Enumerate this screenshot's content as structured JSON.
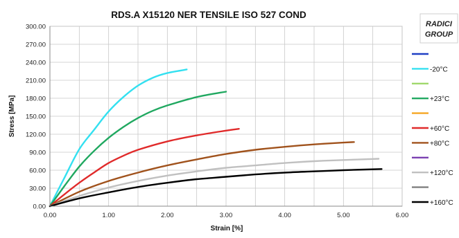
{
  "chart_data": {
    "type": "line",
    "title": "RDS.A X15120 NER TENSILE ISO 527 COND",
    "xlabel": "Strain [%]",
    "ylabel": "Stress [MPa]",
    "xlim": [
      0,
      6
    ],
    "ylim": [
      0,
      300
    ],
    "x_ticks": [
      "0.00",
      "1.00",
      "2.00",
      "3.00",
      "4.00",
      "5.00",
      "6.00"
    ],
    "y_ticks": [
      "0.00",
      "30.00",
      "60.00",
      "90.00",
      "120.00",
      "150.00",
      "180.00",
      "210.00",
      "240.00",
      "270.00",
      "300.00"
    ],
    "grid": true,
    "legend_position": "right",
    "logo_text": "RADICI GROUP",
    "series": [
      {
        "name": "",
        "color": "#1f3fc4",
        "points": []
      },
      {
        "name": "-20°C",
        "color": "#33e0f0",
        "points": [
          [
            0,
            0
          ],
          [
            0.25,
            48
          ],
          [
            0.5,
            95
          ],
          [
            0.75,
            127
          ],
          [
            1.0,
            158
          ],
          [
            1.25,
            182
          ],
          [
            1.5,
            201
          ],
          [
            1.75,
            214
          ],
          [
            2.0,
            222
          ],
          [
            2.33,
            228
          ]
        ]
      },
      {
        "name": "",
        "color": "#9fd86a",
        "points": []
      },
      {
        "name": "+23°C",
        "color": "#20a860",
        "points": [
          [
            0,
            0
          ],
          [
            0.25,
            34
          ],
          [
            0.5,
            66
          ],
          [
            0.75,
            92
          ],
          [
            1.0,
            114
          ],
          [
            1.25,
            132
          ],
          [
            1.5,
            147
          ],
          [
            1.75,
            159
          ],
          [
            2.0,
            168
          ],
          [
            2.5,
            182
          ],
          [
            3.0,
            191
          ]
        ]
      },
      {
        "name": "",
        "color": "#f5a623",
        "points": []
      },
      {
        "name": "+60°C",
        "color": "#e02a2a",
        "points": [
          [
            0,
            0
          ],
          [
            0.25,
            20
          ],
          [
            0.5,
            39
          ],
          [
            0.75,
            56
          ],
          [
            1.0,
            72
          ],
          [
            1.25,
            84
          ],
          [
            1.5,
            94
          ],
          [
            2.0,
            108
          ],
          [
            2.5,
            118
          ],
          [
            3.0,
            126
          ],
          [
            3.22,
            129
          ]
        ]
      },
      {
        "name": "+80°C",
        "color": "#a0521c",
        "points": [
          [
            0,
            0
          ],
          [
            0.5,
            24
          ],
          [
            1.0,
            42
          ],
          [
            1.5,
            56
          ],
          [
            2.0,
            68
          ],
          [
            2.5,
            78
          ],
          [
            3.0,
            87
          ],
          [
            3.5,
            94
          ],
          [
            4.0,
            99
          ],
          [
            4.5,
            103
          ],
          [
            5.0,
            106
          ],
          [
            5.18,
            107
          ]
        ]
      },
      {
        "name": "",
        "color": "#7a3fb0",
        "points": []
      },
      {
        "name": "+120°C",
        "color": "#c0c0c0",
        "points": [
          [
            0,
            0
          ],
          [
            0.5,
            17
          ],
          [
            1.0,
            31
          ],
          [
            1.5,
            42
          ],
          [
            2.0,
            51
          ],
          [
            2.5,
            58
          ],
          [
            3.0,
            64
          ],
          [
            3.5,
            68
          ],
          [
            4.0,
            72
          ],
          [
            4.5,
            75
          ],
          [
            5.0,
            77
          ],
          [
            5.6,
            79
          ]
        ]
      },
      {
        "name": "",
        "color": "#808080",
        "points": []
      },
      {
        "name": "+160°C",
        "color": "#000000",
        "points": [
          [
            0,
            0
          ],
          [
            0.5,
            13
          ],
          [
            1.0,
            23
          ],
          [
            1.5,
            32
          ],
          [
            2.0,
            39
          ],
          [
            2.5,
            45
          ],
          [
            3.0,
            49
          ],
          [
            3.5,
            53
          ],
          [
            4.0,
            56
          ],
          [
            4.5,
            58
          ],
          [
            5.0,
            60
          ],
          [
            5.65,
            62
          ]
        ]
      }
    ]
  }
}
